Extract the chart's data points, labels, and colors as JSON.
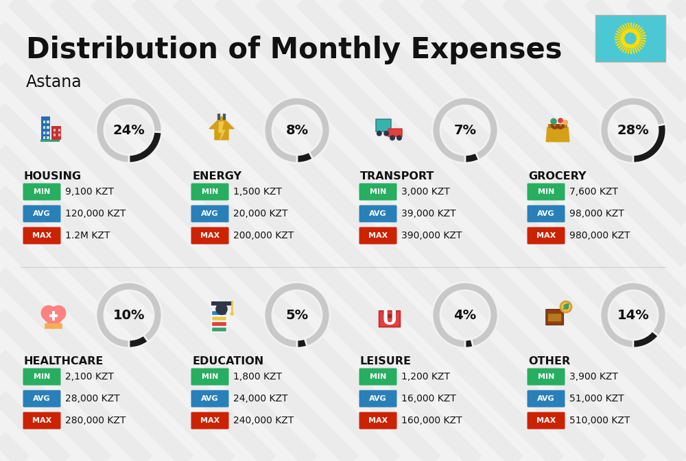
{
  "title": "Distribution of Monthly Expenses",
  "subtitle": "Astana",
  "bg_color": "#f2f2f2",
  "stripe_color": "#e6e6e6",
  "text_color": "#111111",
  "min_color": "#27ae60",
  "avg_color": "#2980b9",
  "max_color": "#cc2200",
  "label_fg": "#ffffff",
  "donut_filled": "#1a1a1a",
  "donut_empty": "#c8c8c8",
  "donut_bg": "#f2f2f2",
  "flag_color": "#4BC8D4",
  "categories": [
    {
      "name": "HOUSING",
      "percent": 24,
      "col": 0,
      "row": 0,
      "min": "9,100 KZT",
      "avg": "120,000 KZT",
      "max": "1.2M KZT"
    },
    {
      "name": "ENERGY",
      "percent": 8,
      "col": 1,
      "row": 0,
      "min": "1,500 KZT",
      "avg": "20,000 KZT",
      "max": "200,000 KZT"
    },
    {
      "name": "TRANSPORT",
      "percent": 7,
      "col": 2,
      "row": 0,
      "min": "3,000 KZT",
      "avg": "39,000 KZT",
      "max": "390,000 KZT"
    },
    {
      "name": "GROCERY",
      "percent": 28,
      "col": 3,
      "row": 0,
      "min": "7,600 KZT",
      "avg": "98,000 KZT",
      "max": "980,000 KZT"
    },
    {
      "name": "HEALTHCARE",
      "percent": 10,
      "col": 0,
      "row": 1,
      "min": "2,100 KZT",
      "avg": "28,000 KZT",
      "max": "280,000 KZT"
    },
    {
      "name": "EDUCATION",
      "percent": 5,
      "col": 1,
      "row": 1,
      "min": "1,800 KZT",
      "avg": "24,000 KZT",
      "max": "240,000 KZT"
    },
    {
      "name": "LEISURE",
      "percent": 4,
      "col": 2,
      "row": 1,
      "min": "1,200 KZT",
      "avg": "16,000 KZT",
      "max": "160,000 KZT"
    },
    {
      "name": "OTHER",
      "percent": 14,
      "col": 3,
      "row": 1,
      "min": "3,900 KZT",
      "avg": "51,000 KZT",
      "max": "510,000 KZT"
    }
  ]
}
